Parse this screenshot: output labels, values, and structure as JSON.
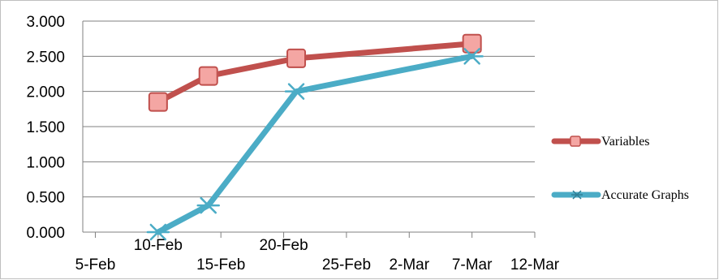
{
  "chart_data": {
    "type": "line",
    "title": "",
    "xlabel": "",
    "ylabel": "",
    "x_tick_labels": [
      "5-Feb",
      "10-Feb",
      "15-Feb",
      "20-Feb",
      "25-Feb",
      "2-Mar",
      "7-Mar",
      "12-Mar"
    ],
    "y_tick_labels": [
      "0.000",
      "0.500",
      "1.000",
      "1.500",
      "2.000",
      "2.500",
      "3.000"
    ],
    "ylim": [
      0,
      3
    ],
    "xlim": [
      "2014-02-04",
      "2014-03-12"
    ],
    "grid": "horizontal",
    "legend_position": "right",
    "series": [
      {
        "name": "Variables",
        "color": "#c0504d",
        "marker": "square",
        "x": [
          "2014-02-10",
          "2014-02-14",
          "2014-02-21",
          "2014-03-07"
        ],
        "y": [
          1.85,
          2.22,
          2.47,
          2.68
        ]
      },
      {
        "name": "Accurate Graphs",
        "color": "#4bacc6",
        "marker": "star",
        "x": [
          "2014-02-10",
          "2014-02-14",
          "2014-02-21",
          "2014-03-07"
        ],
        "y": [
          0.0,
          0.38,
          2.0,
          2.5
        ]
      }
    ]
  }
}
